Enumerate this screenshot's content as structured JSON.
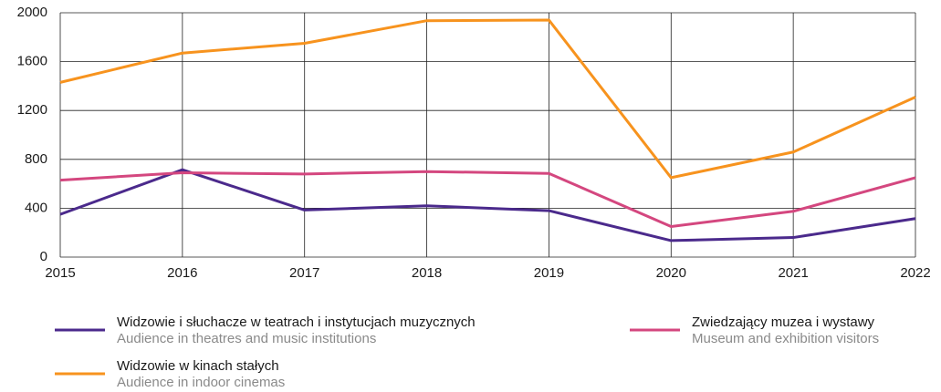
{
  "chart_data": {
    "type": "line",
    "x": [
      2015,
      2016,
      2017,
      2018,
      2019,
      2020,
      2021,
      2022
    ],
    "xlim": [
      2015,
      2022
    ],
    "xticks": [
      2015,
      2016,
      2017,
      2018,
      2019,
      2020,
      2021,
      2022
    ],
    "ylim": [
      0,
      2000
    ],
    "yticks": [
      0,
      400,
      800,
      1200,
      1600,
      2000
    ],
    "grid": true,
    "series": [
      {
        "name": "Widzowie i słuchacze w teatrach i instytucjach muzycznych",
        "name_en": "Audience in theatres and music institutions",
        "color": "#4b2a8c",
        "values": [
          350,
          715,
          385,
          420,
          380,
          135,
          160,
          315
        ]
      },
      {
        "name": "Zwiedzający muzea i wystawy",
        "name_en": "Museum and exhibition visitors",
        "color": "#d4477f",
        "values": [
          630,
          690,
          680,
          700,
          685,
          250,
          375,
          650
        ]
      },
      {
        "name": "Widzowie w kinach stałych",
        "name_en": "Audience in indoor cinemas",
        "color": "#f7931e",
        "values": [
          1430,
          1670,
          1750,
          1935,
          1940,
          650,
          860,
          1310
        ]
      }
    ]
  }
}
